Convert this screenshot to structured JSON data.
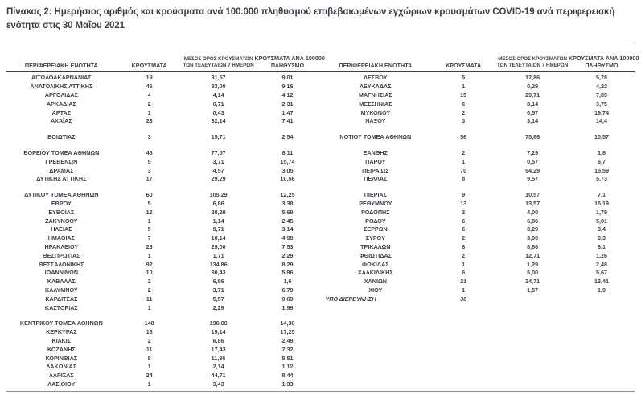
{
  "title": "Πίνακας 2: Ημερήσιος αριθμός και κρούσματα ανά 100.000 πληθυσμού επιβεβαιωμένων εγχώριων κρουσμάτων COVID-19 ανά περιφερειακή ενότητα στις 30 Μαΐου 2021",
  "table": {
    "headers": {
      "region": "ΠΕΡΙΦΕΡΕΙΑΚΗ ΕΝΟΤΗΤΑ",
      "cases": "ΚΡΟΥΣΜΑΤΑ",
      "avg7_line1": "ΜΕΣΟΣ ΟΡΟΣ ΚΡΟΥΣΜΑΤΩΝ",
      "avg7_line2": "ΤΩΝ ΤΕΛΕΥΤΑΙΩΝ 7 ΗΜΕΡΩΝ",
      "per100k_line1": "ΚΡΟΥΣΜΑΤΑ ΑΝΑ 100000",
      "per100k_line2": "ΠΛΗΘΥΣΜΟ"
    },
    "rows": [
      {
        "type": "row",
        "left": {
          "name": "ΑΙΤΩΛΟΑΚΑΡΝΑΝΙΑΣ",
          "cases": "19",
          "avg7": "31,57",
          "per100k": "9,01"
        },
        "right": {
          "name": "ΛΕΣΒΟΥ",
          "cases": "5",
          "avg7": "12,86",
          "per100k": "5,78"
        }
      },
      {
        "type": "row",
        "left": {
          "name": "ΑΝΑΤΟΛΙΚΗΣ ΑΤΤΙΚΗΣ",
          "cases": "46",
          "avg7": "83,00",
          "per100k": "9,16"
        },
        "right": {
          "name": "ΛΕΥΚΑΔΑΣ",
          "cases": "1",
          "avg7": "0,29",
          "per100k": "4,22"
        }
      },
      {
        "type": "row",
        "left": {
          "name": "ΑΡΓΟΛΙΔΑΣ",
          "cases": "4",
          "avg7": "4,14",
          "per100k": "4,12"
        },
        "right": {
          "name": "ΜΑΓΝΗΣΙΑΣ",
          "cases": "15",
          "avg7": "29,71",
          "per100k": "7,89"
        }
      },
      {
        "type": "row",
        "left": {
          "name": "ΑΡΚΑΔΙΑΣ",
          "cases": "2",
          "avg7": "6,71",
          "per100k": "2,31"
        },
        "right": {
          "name": "ΜΕΣΣΗΝΙΑΣ",
          "cases": "6",
          "avg7": "8,14",
          "per100k": "3,75"
        }
      },
      {
        "type": "row",
        "left": {
          "name": "ΑΡΤΑΣ",
          "cases": "1",
          "avg7": "0,43",
          "per100k": "1,47"
        },
        "right": {
          "name": "ΜΥΚΟΝΟΥ",
          "cases": "2",
          "avg7": "0,57",
          "per100k": "19,74"
        }
      },
      {
        "type": "row",
        "left": {
          "name": "ΑΧΑΪΑΣ",
          "cases": "23",
          "avg7": "32,14",
          "per100k": "7,41"
        },
        "right": {
          "name": "ΝΑΞΟΥ",
          "cases": "3",
          "avg7": "3,14",
          "per100k": "14,4"
        }
      },
      {
        "type": "gap"
      },
      {
        "type": "row",
        "left": {
          "name": "ΒΟΙΩΤΙΑΣ",
          "cases": "3",
          "avg7": "15,71",
          "per100k": "2,54"
        },
        "right": {
          "name": "ΝΟΤΙΟΥ ΤΟΜΕΑ ΑΘΗΝΩΝ",
          "cases": "56",
          "avg7": "75,86",
          "per100k": "10,57"
        }
      },
      {
        "type": "gap"
      },
      {
        "type": "row",
        "left": {
          "name": "ΒΟΡΕΙΟΥ ΤΟΜΕΑ ΑΘΗΝΩΝ",
          "cases": "48",
          "avg7": "77,57",
          "per100k": "8,11"
        },
        "right": {
          "name": "ΞΑΝΘΗΣ",
          "cases": "2",
          "avg7": "7,29",
          "per100k": "1,8"
        }
      },
      {
        "type": "row",
        "left": {
          "name": "ΓΡΕΒΕΝΩΝ",
          "cases": "5",
          "avg7": "3,71",
          "per100k": "15,74"
        },
        "right": {
          "name": "ΠΑΡΟΥ",
          "cases": "1",
          "avg7": "0,57",
          "per100k": "6,7"
        }
      },
      {
        "type": "row",
        "left": {
          "name": "ΔΡΑΜΑΣ",
          "cases": "3",
          "avg7": "4,57",
          "per100k": "3,05"
        },
        "right": {
          "name": "ΠΕΙΡΑΙΩΣ",
          "cases": "70",
          "avg7": "94,29",
          "per100k": "15,59"
        }
      },
      {
        "type": "row",
        "left": {
          "name": "ΔΥΤΙΚΗΣ ΑΤΤΙΚΗΣ",
          "cases": "17",
          "avg7": "29,29",
          "per100k": "10,56"
        },
        "right": {
          "name": "ΠΕΛΛΑΣ",
          "cases": "8",
          "avg7": "9,57",
          "per100k": "5,73"
        }
      },
      {
        "type": "gap"
      },
      {
        "type": "row",
        "left": {
          "name": "ΔΥΤΙΚΟΥ ΤΟΜΕΑ ΑΘΗΝΩΝ",
          "cases": "60",
          "avg7": "105,29",
          "per100k": "12,25"
        },
        "right": {
          "name": "ΠΙΕΡΙΑΣ",
          "cases": "9",
          "avg7": "10,57",
          "per100k": "7,1"
        }
      },
      {
        "type": "row",
        "left": {
          "name": "ΕΒΡΟΥ",
          "cases": "5",
          "avg7": "6,86",
          "per100k": "3,38"
        },
        "right": {
          "name": "ΡΕΘΥΜΝΟΥ",
          "cases": "13",
          "avg7": "13,57",
          "per100k": "15,19"
        }
      },
      {
        "type": "row",
        "left": {
          "name": "ΕΥΒΟΙΑΣ",
          "cases": "12",
          "avg7": "20,29",
          "per100k": "5,69"
        },
        "right": {
          "name": "ΡΟΔΟΠΗΣ",
          "cases": "2",
          "avg7": "4,00",
          "per100k": "1,79"
        }
      },
      {
        "type": "row",
        "left": {
          "name": "ΖΑΚΥΝΘΟΥ",
          "cases": "1",
          "avg7": "1,14",
          "per100k": "2,45"
        },
        "right": {
          "name": "ΡΟΔΟΥ",
          "cases": "6",
          "avg7": "6,86",
          "per100k": "5,01"
        }
      },
      {
        "type": "row",
        "left": {
          "name": "ΗΛΕΙΑΣ",
          "cases": "5",
          "avg7": "9,71",
          "per100k": "3,14"
        },
        "right": {
          "name": "ΣΕΡΡΩΝ",
          "cases": "6",
          "avg7": "8,29",
          "per100k": "3,4"
        }
      },
      {
        "type": "row",
        "left": {
          "name": "ΗΜΑΘΙΑΣ",
          "cases": "7",
          "avg7": "10,14",
          "per100k": "4,98"
        },
        "right": {
          "name": "ΣΥΡΟΥ",
          "cases": "2",
          "avg7": "3,00",
          "per100k": "9,3"
        }
      },
      {
        "type": "row",
        "left": {
          "name": "ΗΡΑΚΛΕΙΟΥ",
          "cases": "23",
          "avg7": "29,00",
          "per100k": "7,53"
        },
        "right": {
          "name": "ΤΡΙΚΑΛΩΝ",
          "cases": "8",
          "avg7": "8,86",
          "per100k": "6,1"
        }
      },
      {
        "type": "row",
        "left": {
          "name": "ΘΕΣΠΡΩΤΙΑΣ",
          "cases": "1",
          "avg7": "1,71",
          "per100k": "2,29"
        },
        "right": {
          "name": "ΦΘΙΩΤΙΔΑΣ",
          "cases": "2",
          "avg7": "12,71",
          "per100k": "1,26"
        }
      },
      {
        "type": "row",
        "left": {
          "name": "ΘΕΣΣΑΛΟΝΙΚΗΣ",
          "cases": "92",
          "avg7": "134,86",
          "per100k": "8,29"
        },
        "right": {
          "name": "ΦΩΚΙΔΑΣ",
          "cases": "1",
          "avg7": "1,29",
          "per100k": "2,48"
        }
      },
      {
        "type": "row",
        "left": {
          "name": "ΙΩΑΝΝΙΝΩΝ",
          "cases": "10",
          "avg7": "30,43",
          "per100k": "5,96"
        },
        "right": {
          "name": "ΧΑΛΚΙΔΙΚΗΣ",
          "cases": "6",
          "avg7": "5,00",
          "per100k": "5,67"
        }
      },
      {
        "type": "row",
        "left": {
          "name": "ΚΑΒΑΛΑΣ",
          "cases": "2",
          "avg7": "6,86",
          "per100k": "1,6"
        },
        "right": {
          "name": "ΧΑΝΙΩΝ",
          "cases": "21",
          "avg7": "24,71",
          "per100k": "13,41"
        }
      },
      {
        "type": "row",
        "left": {
          "name": "ΚΑΛΥΜΝΟΥ",
          "cases": "2",
          "avg7": "3,71",
          "per100k": "6,79"
        },
        "right": {
          "name": "ΧΙΟΥ",
          "cases": "1",
          "avg7": "1,57",
          "per100k": "1,9"
        }
      },
      {
        "type": "row",
        "left": {
          "name": "ΚΑΡΔΙΤΣΑΣ",
          "cases": "11",
          "avg7": "5,57",
          "per100k": "9,69"
        },
        "right": {
          "name": "ΥΠΟ ΔΙΕΡΕΥΝΗΣΗ",
          "cases": "38",
          "avg7": "",
          "per100k": "",
          "italic": true
        }
      },
      {
        "type": "row",
        "left": {
          "name": "ΚΑΣΤΟΡΙΑΣ",
          "cases": "1",
          "avg7": "2,29",
          "per100k": "1,99"
        },
        "right": null
      },
      {
        "type": "gap"
      },
      {
        "type": "row",
        "left": {
          "name": "ΚΕΝΤΡΙΚΟΥ ΤΟΜΕΑ ΑΘΗΝΩΝ",
          "cases": "148",
          "avg7": "196,00",
          "per100k": "14,38"
        },
        "right": null
      },
      {
        "type": "row",
        "left": {
          "name": "ΚΕΡΚΥΡΑΣ",
          "cases": "18",
          "avg7": "19,14",
          "per100k": "17,25"
        },
        "right": null
      },
      {
        "type": "row",
        "left": {
          "name": "ΚΙΛΚΙΣ",
          "cases": "2",
          "avg7": "6,86",
          "per100k": "2,49"
        },
        "right": null
      },
      {
        "type": "row",
        "left": {
          "name": "ΚΟΖΑΝΗΣ",
          "cases": "11",
          "avg7": "17,43",
          "per100k": "7,32"
        },
        "right": null
      },
      {
        "type": "row",
        "left": {
          "name": "ΚΟΡΙΝΘΙΑΣ",
          "cases": "8",
          "avg7": "11,86",
          "per100k": "5,51"
        },
        "right": null
      },
      {
        "type": "row",
        "left": {
          "name": "ΛΑΚΩΝΙΑΣ",
          "cases": "1",
          "avg7": "2,14",
          "per100k": "1,12"
        },
        "right": null
      },
      {
        "type": "row",
        "left": {
          "name": "ΛΑΡΙΣΑΣ",
          "cases": "24",
          "avg7": "44,71",
          "per100k": "8,44"
        },
        "right": null
      },
      {
        "type": "row",
        "left": {
          "name": "ΛΑΣΙΘΙΟΥ",
          "cases": "1",
          "avg7": "3,43",
          "per100k": "1,33"
        },
        "right": null
      }
    ]
  },
  "colors": {
    "text": "#3f3f47",
    "top_rule": "#55555a",
    "header_rule": "#3a3a40",
    "bottom_rule": "#909095",
    "background": "#ffffff"
  }
}
